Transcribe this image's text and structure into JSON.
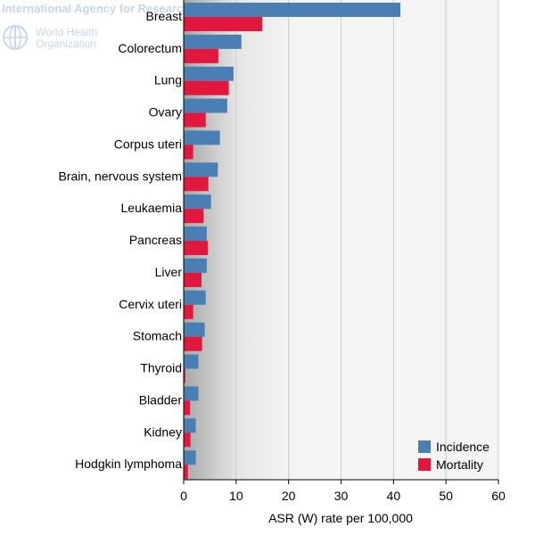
{
  "watermark": {
    "agency": "International Agency for Research on Cancer",
    "who_line1": "World Health",
    "who_line2": "Organization"
  },
  "chart_data": {
    "type": "bar",
    "orientation": "horizontal",
    "categories": [
      "Breast",
      "Colorectum",
      "Lung",
      "Ovary",
      "Corpus uteri",
      "Brain, nervous system",
      "Leukaemia",
      "Pancreas",
      "Liver",
      "Cervix uteri",
      "Stomach",
      "Thyroid",
      "Bladder",
      "Kidney",
      "Hodgkin lymphoma"
    ],
    "series": [
      {
        "name": "Incidence",
        "color": "#4a7fb5",
        "values": [
          41.3,
          11.0,
          9.5,
          8.3,
          6.9,
          6.5,
          5.2,
          4.4,
          4.4,
          4.2,
          4.0,
          2.8,
          2.8,
          2.3,
          2.3
        ]
      },
      {
        "name": "Mortality",
        "color": "#e2173d",
        "values": [
          15.0,
          6.6,
          8.6,
          4.2,
          1.8,
          4.7,
          3.8,
          4.6,
          3.4,
          1.8,
          3.5,
          0.3,
          1.2,
          1.3,
          0.8
        ]
      }
    ],
    "xlabel": "ASR (W) rate per 100,000",
    "xlim": [
      0,
      60
    ],
    "xticks": [
      0,
      10,
      20,
      30,
      40,
      50,
      60
    ],
    "grid": true,
    "legend_position": "bottom-right"
  }
}
